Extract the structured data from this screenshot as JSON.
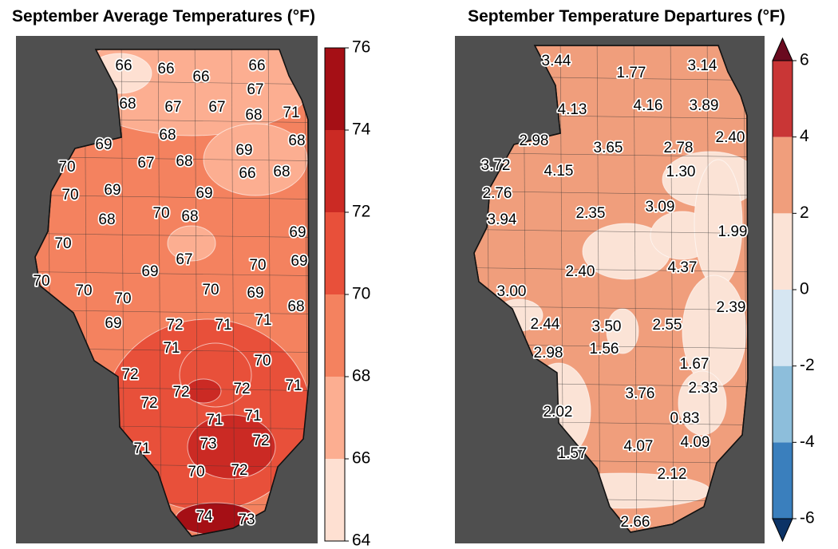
{
  "maps": [
    {
      "title": "September Average Temperatures (°F)",
      "colorbar": {
        "ticks": [
          64,
          66,
          68,
          70,
          72,
          74,
          76
        ],
        "colors": [
          "#fee0d2",
          "#fcae91",
          "#f4825f",
          "#e8503a",
          "#cb2a24",
          "#a50f15"
        ]
      },
      "labels": {
        "values": [
          66,
          66,
          66,
          66,
          67,
          68,
          67,
          67,
          68,
          71,
          68,
          68,
          69,
          69,
          70,
          67,
          68,
          66,
          68,
          70,
          69,
          69,
          70,
          68,
          68,
          69,
          70,
          67,
          70,
          69,
          70,
          69,
          70,
          70,
          70,
          69,
          68,
          69,
          72,
          71,
          71,
          71,
          70,
          72,
          72,
          72,
          71,
          72,
          71,
          71,
          73,
          72,
          71,
          70,
          72,
          74,
          73
        ]
      }
    },
    {
      "title": "September Temperature Departures (°F)",
      "colorbar": {
        "ticks": [
          -6,
          -4,
          -2,
          0,
          2,
          4,
          6
        ],
        "colors": [
          "#3a7fbd",
          "#8dbedb",
          "#d6e6f2",
          "#fbe3d6",
          "#f09e7c",
          "#c93636"
        ],
        "extend_colors": [
          "#0c3366",
          "#6a0a1f"
        ]
      },
      "labels": {
        "values": [
          3.44,
          1.77,
          3.14,
          4.13,
          4.16,
          3.89,
          2.98,
          3.65,
          2.78,
          2.4,
          3.72,
          4.15,
          1.3,
          2.76,
          2.35,
          3.09,
          3.94,
          1.99,
          4.37,
          2.4,
          3,
          2.39,
          2.44,
          3.5,
          2.55,
          2.98,
          1.56,
          1.67,
          2.33,
          3.76,
          2.02,
          0.83,
          4.07,
          4.09,
          1.57,
          2.12,
          2.66
        ],
        "value_labels": [
          "3.44",
          "1.77",
          "3.14",
          "4.13",
          "4.16",
          "3.89",
          "2.98",
          "3.65",
          "2.78",
          "2.40",
          "3.72",
          "4.15",
          "1.30",
          "2.76",
          "2.35",
          "3.09",
          "3.94",
          "1.99",
          "4.37",
          "2.40",
          "3.00",
          "2.39",
          "2.44",
          "3.50",
          "2.55",
          "2.98",
          "1.56",
          "1.67",
          "2.33",
          "3.76",
          "2.02",
          "0.83",
          "4.07",
          "4.09",
          "1.57",
          "2.12",
          "2.66"
        ]
      }
    }
  ]
}
